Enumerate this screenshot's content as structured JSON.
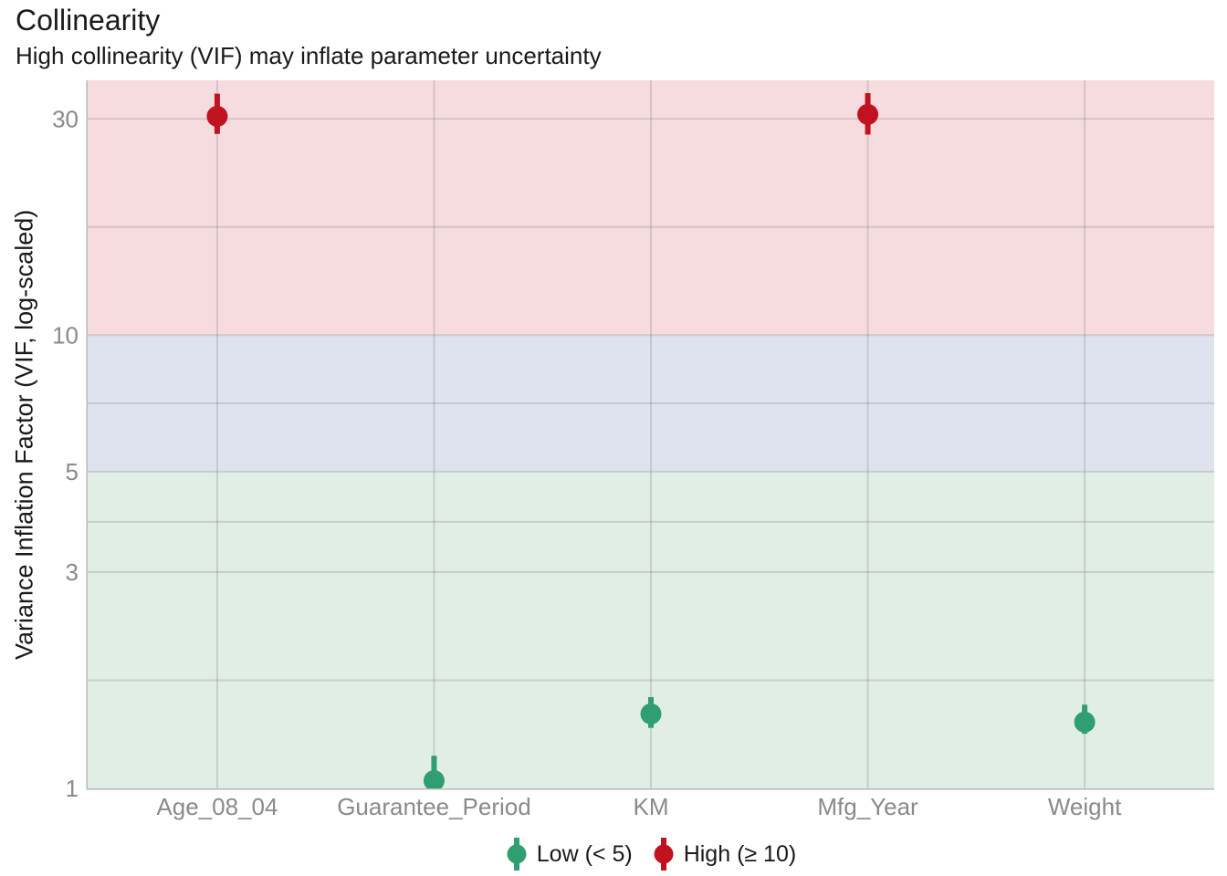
{
  "title": "Collinearity",
  "subtitle": "High collinearity (VIF) may inflate parameter uncertainty",
  "chart_data": {
    "type": "scatter",
    "variant": "pointrange",
    "title": "Collinearity",
    "subtitle": "High collinearity (VIF) may inflate parameter uncertainty",
    "xlabel": "",
    "ylabel": "Variance Inflation Factor (VIF, log-scaled)",
    "y_scale": "log",
    "ylim": [
      1,
      36.5
    ],
    "y_ticks": [
      1,
      3,
      5,
      10,
      30
    ],
    "y_minor_ticks": [
      1.732,
      3.873,
      7.071,
      17.321
    ],
    "grid": true,
    "categories": [
      "Age_08_04",
      "Guarantee_Period",
      "KM",
      "Mfg_Year",
      "Weight"
    ],
    "series": [
      {
        "name": "Age_08_04",
        "vif": 30.4,
        "ci_low": 27.8,
        "ci_high": 34.1,
        "level": "High"
      },
      {
        "name": "Guarantee_Period",
        "vif": 1.04,
        "ci_low": 0.99,
        "ci_high": 1.18,
        "level": "Low"
      },
      {
        "name": "KM",
        "vif": 1.46,
        "ci_low": 1.36,
        "ci_high": 1.59,
        "level": "Low"
      },
      {
        "name": "Mfg_Year",
        "vif": 30.7,
        "ci_low": 27.7,
        "ci_high": 34.2,
        "level": "High"
      },
      {
        "name": "Weight",
        "vif": 1.4,
        "ci_low": 1.32,
        "ci_high": 1.53,
        "level": "Low"
      }
    ],
    "bands": [
      {
        "name": "low",
        "from": 1,
        "to": 5,
        "color": "#E1EEE6"
      },
      {
        "name": "mid",
        "from": 5,
        "to": 10,
        "color": "#DEE3EF"
      },
      {
        "name": "high",
        "from": 10,
        "to": 36.5,
        "color": "#F6DCDF"
      }
    ],
    "legend": {
      "position": "bottom",
      "items": [
        {
          "label": "Low (< 5)",
          "level": "Low",
          "color": "#2F9E70"
        },
        {
          "label": "High (≥ 10)",
          "level": "High",
          "color": "#C0131F"
        }
      ]
    },
    "colors": {
      "low": "#2F9E70",
      "high": "#C0131F",
      "grid": "rgba(128,128,128,0.28)",
      "axis_line": "#b8b8b8",
      "tick_text": "#8a8a8a",
      "title_text": "#1a1a1a"
    }
  }
}
